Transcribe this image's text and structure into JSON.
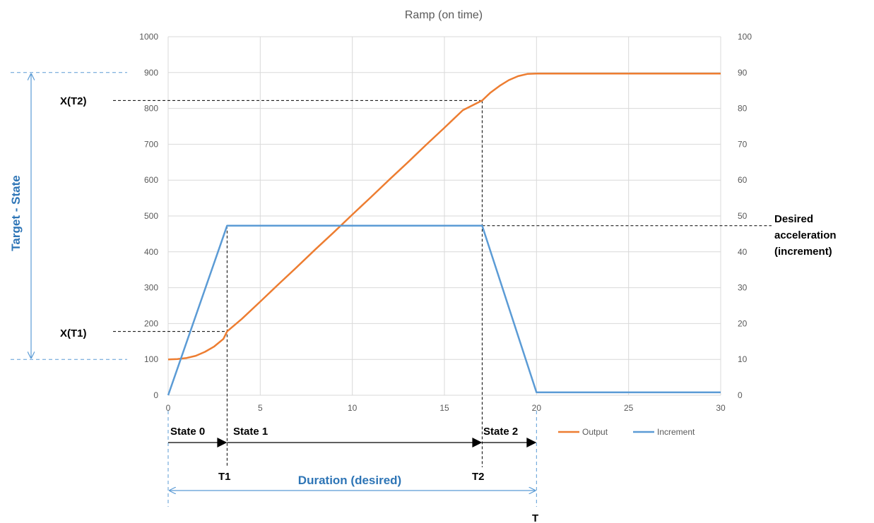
{
  "chart_data": {
    "type": "line",
    "title": "Ramp (on time)",
    "x_ticks": [
      "0",
      "5",
      "10",
      "15",
      "20",
      "25",
      "30"
    ],
    "xlim": [
      0,
      30
    ],
    "y_left_ticks": [
      "0",
      "100",
      "200",
      "300",
      "400",
      "500",
      "600",
      "700",
      "800",
      "900",
      "1000"
    ],
    "ylim_left": [
      0,
      1000
    ],
    "y_right_ticks": [
      "0",
      "10",
      "20",
      "30",
      "40",
      "50",
      "60",
      "70",
      "80",
      "90",
      "100"
    ],
    "ylim_right": [
      0,
      100
    ],
    "grid": true,
    "legend_position": "bottom-right",
    "series": [
      {
        "name": "Output",
        "axis": "left",
        "color": "#ED7D31",
        "x": [
          0,
          0.5,
          1,
          1.5,
          2,
          2.5,
          3,
          3.2,
          4,
          5,
          6,
          7,
          8,
          9,
          10,
          11,
          12,
          13,
          14,
          15,
          16,
          17.05,
          17.5,
          18,
          18.5,
          19,
          19.5,
          20,
          25,
          30
        ],
        "values": [
          100,
          101,
          104,
          110,
          121,
          136,
          157,
          178,
          213,
          261,
          310,
          358,
          407,
          455,
          504,
          552,
          601,
          649,
          698,
          746,
          795,
          822,
          844,
          863,
          879,
          890,
          896,
          897,
          897,
          897
        ]
      },
      {
        "name": "Increment",
        "axis": "right",
        "color": "#5B9BD5",
        "x": [
          0,
          3.2,
          17.05,
          20,
          30
        ],
        "values": [
          0,
          47.3,
          47.3,
          0.8,
          0.8
        ]
      }
    ]
  },
  "annotations": {
    "xt2": "X(T2)",
    "xt1": "X(T1)",
    "target_state": "Target - State",
    "desired_accel": [
      "Desired",
      "acceleration",
      "(increment)"
    ],
    "state0": "State 0",
    "state1": "State 1",
    "state2": "State 2",
    "t1": "T1",
    "t2": "T2",
    "t": "T",
    "duration": "Duration (desired)"
  },
  "marker_levels": {
    "t1_x": 3.2,
    "t2_x": 17.05,
    "t_x": 20,
    "xt1_value": 178,
    "xt2_value": 822,
    "target_top_value": 900,
    "target_bottom_value": 100,
    "desired_increment_value": 47.3
  },
  "colors": {
    "output": "#ED7D31",
    "increment": "#5B9BD5",
    "annotation_blue": "#2E75B6",
    "grid": "#D9D9D9",
    "axis_text": "#595959"
  }
}
